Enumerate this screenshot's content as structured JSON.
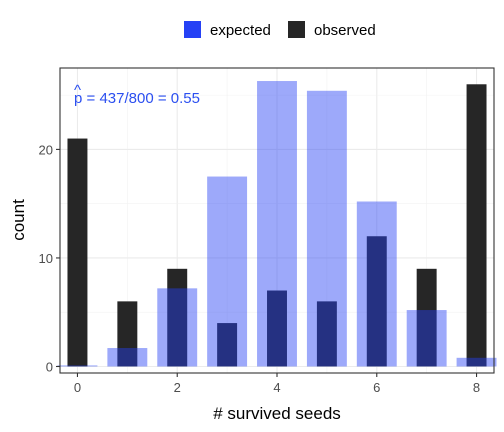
{
  "chart_data": {
    "type": "bar",
    "xlabel": "# survived seeds",
    "ylabel": "count",
    "xlim": [
      -0.35,
      8.35
    ],
    "ylim": [
      -0.6,
      27.5
    ],
    "x_ticks": [
      0,
      2,
      4,
      6,
      8
    ],
    "y_ticks": [
      0,
      10,
      20
    ],
    "grid": true,
    "legend_position": "top",
    "annotation": {
      "hat": "^",
      "symbol": "p",
      "text": " = 437/800 = 0.55"
    },
    "categories": [
      0,
      1,
      2,
      3,
      4,
      5,
      6,
      7,
      8
    ],
    "series": [
      {
        "name": "expected",
        "color": "#2541f5",
        "opacity": 0.45,
        "values": [
          0.1,
          1.7,
          7.2,
          17.5,
          26.3,
          25.4,
          15.2,
          5.2,
          0.8
        ]
      },
      {
        "name": "observed",
        "color": "#262626",
        "values": [
          21,
          6,
          9,
          4,
          7,
          6,
          12,
          9,
          26
        ]
      }
    ]
  }
}
